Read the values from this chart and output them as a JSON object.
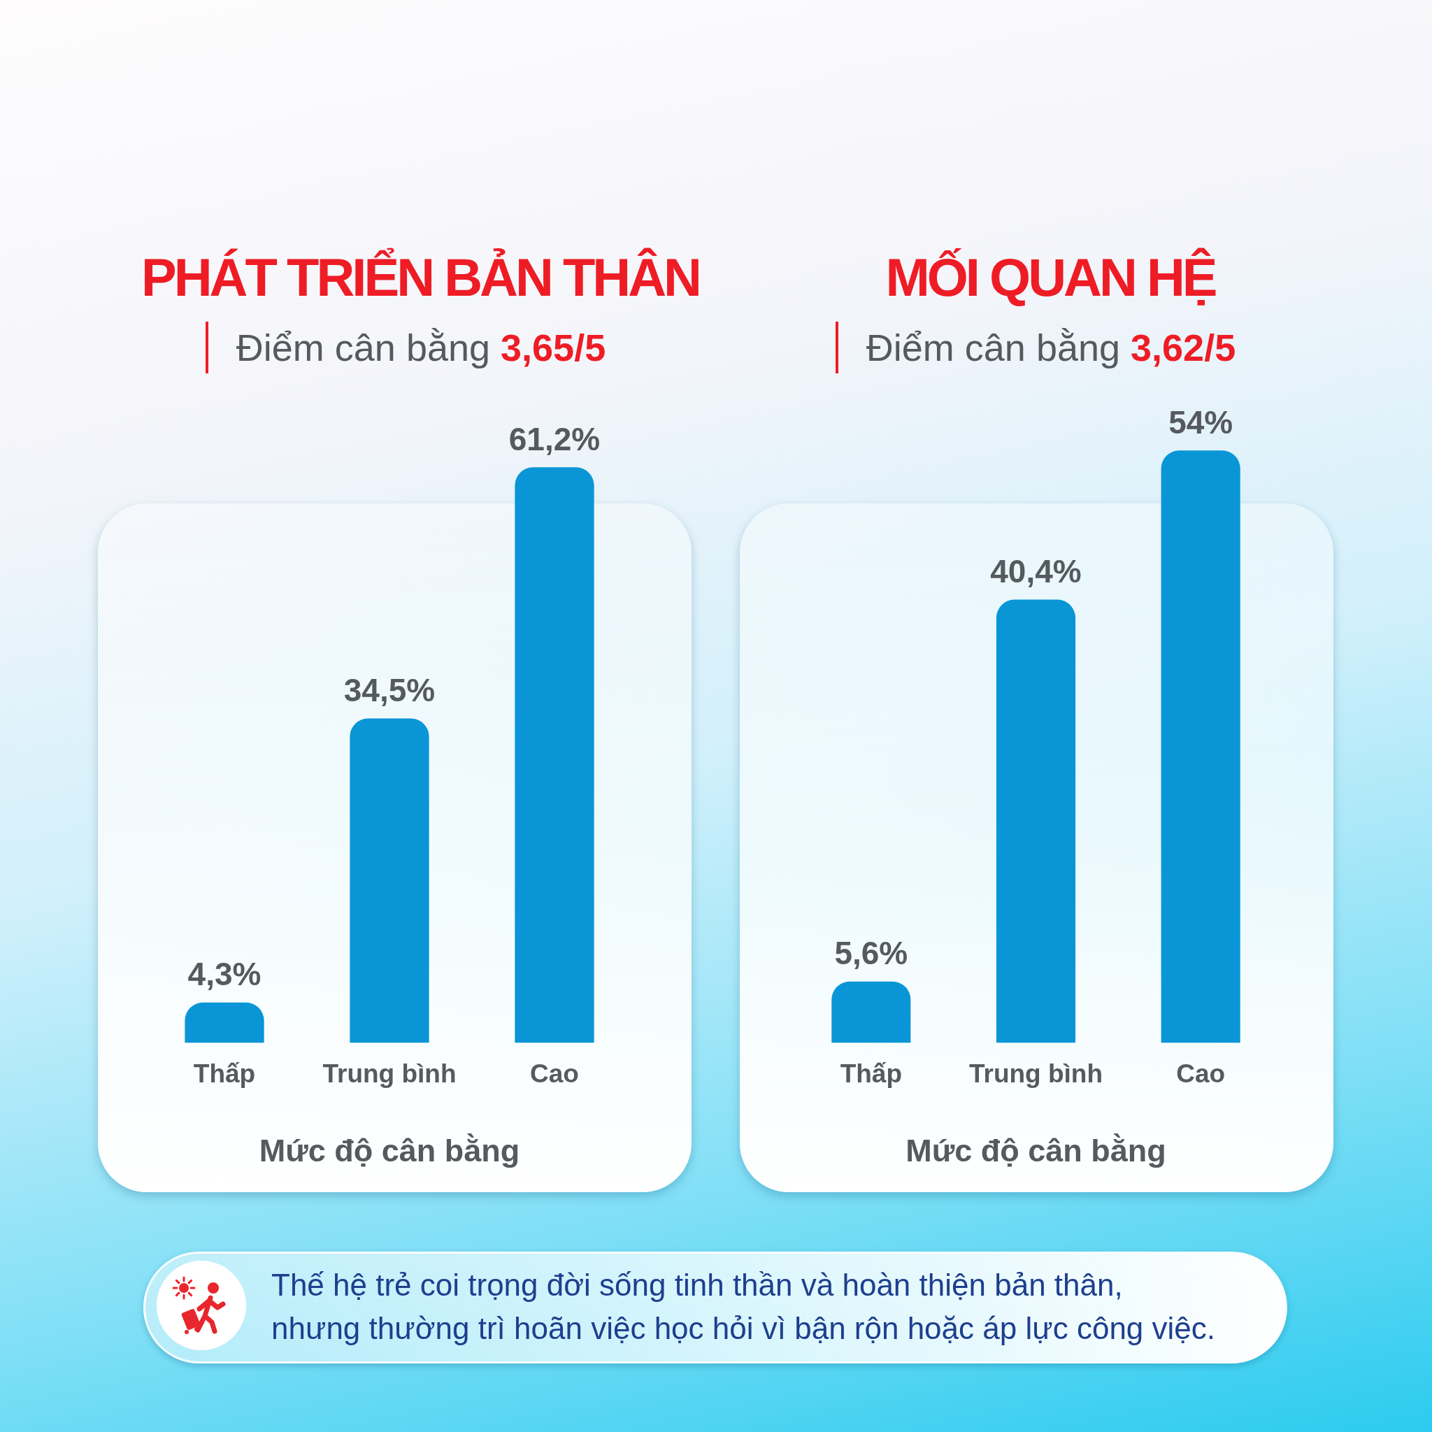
{
  "chart_data": [
    {
      "type": "bar",
      "title": "PHÁT TRIỂN BẢN THÂN",
      "subtitle": "Điểm cân bằng 3,65/5",
      "categories": [
        "Thấp",
        "Trung bình",
        "Cao"
      ],
      "values": [
        4.3,
        34.5,
        61.2
      ],
      "value_labels": [
        "4,3%",
        "34,5%",
        "61,2%"
      ],
      "color": "#0a96d6",
      "xlabel": "Mức độ cân bằng",
      "tick_labels": "x"
    },
    {
      "type": "bar",
      "title": "MỐI QUAN HỆ",
      "subtitle": "Điểm cân bằng 3,62/5",
      "categories": [
        "Thấp",
        "Trung bình",
        "Cao"
      ],
      "values": [
        5.6,
        40.4,
        54
      ],
      "value_labels": [
        "5,6%",
        "40,4%",
        "54%"
      ],
      "color": "#0a96d6",
      "xlabel": "Mức độ cân bằng",
      "tick_labels": "x"
    },
    {
      "type": "other",
      "annotations": [
        "Thế hệ trẻ coi trọng đời sống tinh thần và hoàn thiện bản thân,\nnhưng thường trì hoãn việc học hỏi vì bận rộn hoặc áp lực công việc."
      ]
    }
  ]
}
